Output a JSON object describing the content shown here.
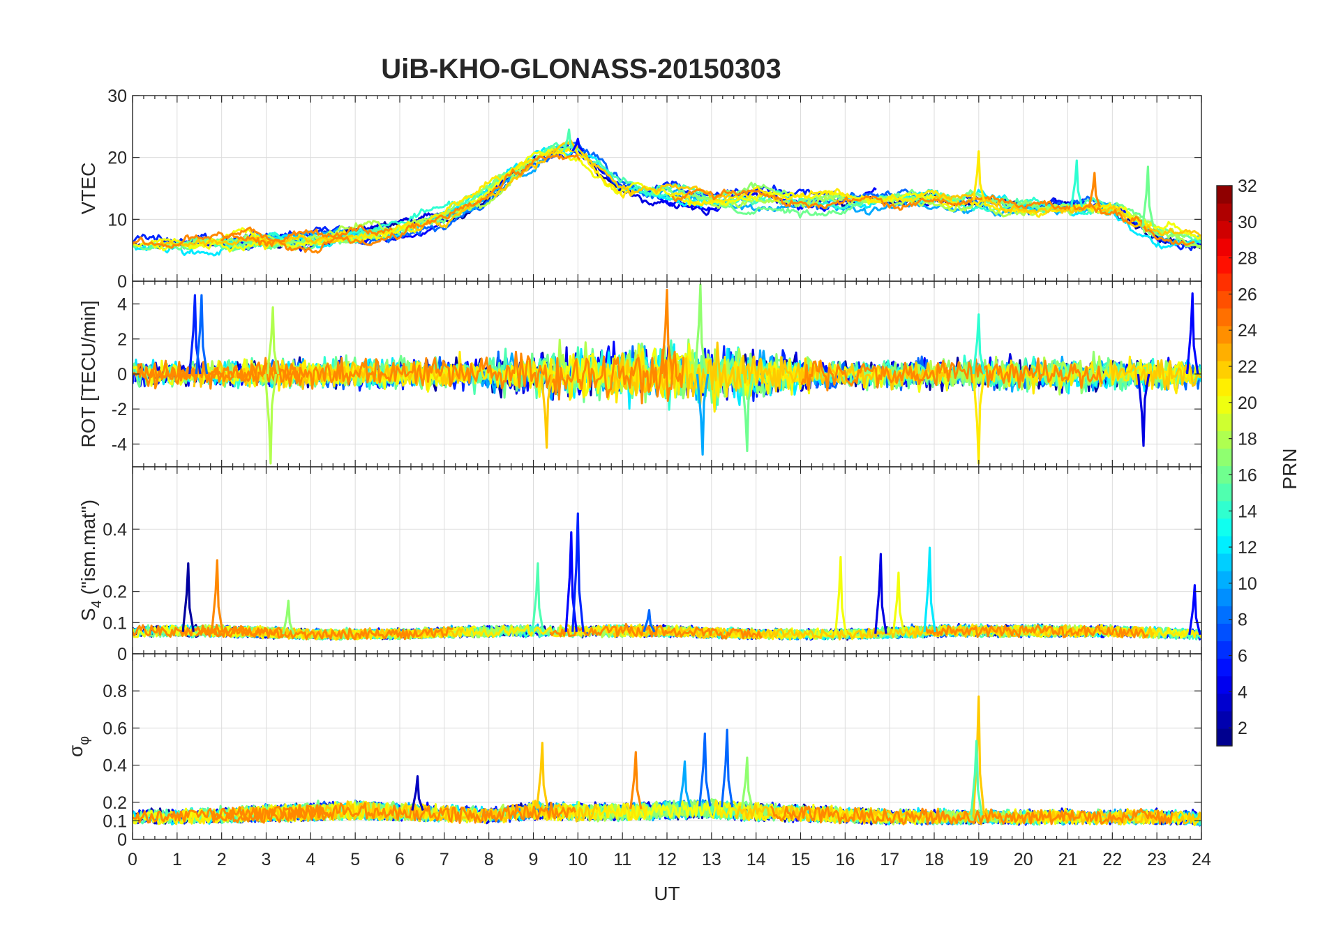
{
  "chart_data": {
    "type": "line",
    "title": "UiB-KHO-GLONASS-20150303",
    "xlabel": "UT",
    "xlim": [
      0,
      24
    ],
    "xticks": [
      "0",
      "1",
      "2",
      "3",
      "4",
      "5",
      "6",
      "7",
      "8",
      "9",
      "10",
      "11",
      "12",
      "13",
      "14",
      "15",
      "16",
      "17",
      "18",
      "19",
      "20",
      "21",
      "22",
      "23",
      "24"
    ],
    "grid": true,
    "panels": [
      {
        "name": "vtec",
        "ylabel": "VTEC",
        "ylim": [
          0,
          30
        ],
        "yticks": [
          0,
          10,
          20,
          30
        ],
        "ytick_labels": [
          "0",
          "10",
          "20",
          "30"
        ],
        "envelope": {
          "x": [
            0,
            1,
            2,
            3,
            4,
            5,
            6,
            7,
            8,
            8.5,
            9,
            9.5,
            10,
            10.5,
            11,
            12,
            13,
            14,
            15,
            16,
            17,
            18,
            19,
            20,
            21,
            22,
            23,
            24
          ],
          "y": [
            6,
            6,
            6.5,
            6.5,
            7,
            7.5,
            8,
            10,
            14,
            17,
            19,
            21,
            21,
            18,
            15,
            14,
            13,
            13.5,
            13,
            13,
            13,
            13,
            13,
            12,
            12,
            12,
            8,
            6
          ]
        },
        "peaks": [
          {
            "x": 9.8,
            "y": 24.5,
            "prn": 15
          },
          {
            "x": 10.0,
            "y": 23,
            "prn": 5
          },
          {
            "x": 19.0,
            "y": 21,
            "prn": 21
          },
          {
            "x": 21.2,
            "y": 19.5,
            "prn": 14
          },
          {
            "x": 22.8,
            "y": 18.5,
            "prn": 16
          },
          {
            "x": 21.6,
            "y": 17.5,
            "prn": 24
          }
        ]
      },
      {
        "name": "rot",
        "ylabel": "ROT [TECU/min]",
        "ylim": [
          -5.3,
          5.3
        ],
        "yticks": [
          -4,
          -2,
          0,
          2,
          4
        ],
        "ytick_labels": [
          "-4",
          "-2",
          "0",
          "2",
          "4"
        ],
        "envelope": {
          "x": [
            0,
            1,
            2,
            3,
            4,
            5,
            6,
            7,
            8,
            9,
            10,
            11,
            12,
            13,
            14,
            15,
            16,
            17,
            18,
            19,
            20,
            21,
            22,
            23,
            24
          ],
          "y": [
            0.8,
            0.8,
            0.8,
            0.9,
            0.9,
            0.9,
            1.0,
            1.0,
            1.3,
            1.6,
            1.8,
            1.8,
            1.9,
            2.1,
            1.6,
            1.2,
            1.0,
            1.0,
            1.0,
            1.0,
            1.1,
            1.1,
            1.1,
            1.0,
            0.9
          ]
        },
        "peaks": [
          {
            "x": 1.4,
            "y": 4.5,
            "prn": 6
          },
          {
            "x": 1.55,
            "y": 4.5,
            "prn": 8
          },
          {
            "x": 3.15,
            "y": 3.8,
            "prn": 18
          },
          {
            "x": 3.1,
            "y": -5.1,
            "prn": 18
          },
          {
            "x": 9.3,
            "y": -4.2,
            "prn": 22
          },
          {
            "x": 12.0,
            "y": 4.8,
            "prn": 24
          },
          {
            "x": 12.75,
            "y": 5.1,
            "prn": 17
          },
          {
            "x": 12.8,
            "y": -4.6,
            "prn": 10
          },
          {
            "x": 13.8,
            "y": -4.4,
            "prn": 16
          },
          {
            "x": 19.0,
            "y": -5.1,
            "prn": 21
          },
          {
            "x": 19.0,
            "y": 3.4,
            "prn": 14
          },
          {
            "x": 22.7,
            "y": -4.1,
            "prn": 4
          },
          {
            "x": 23.8,
            "y": 4.6,
            "prn": 5
          }
        ]
      },
      {
        "name": "s4",
        "ylabel_main": "S",
        "ylabel_sub": "4",
        "ylabel_rest": "  (\"ism.mat\")",
        "ylim": [
          0,
          0.6
        ],
        "yticks": [
          0,
          0.1,
          0.2,
          0.4
        ],
        "ytick_labels": [
          "0",
          "0.1",
          "0.2",
          "0.4"
        ],
        "envelope": {
          "x": [
            0,
            2,
            4,
            6,
            8,
            10,
            12,
            14,
            16,
            18,
            20,
            22,
            24
          ],
          "y": [
            0.07,
            0.07,
            0.06,
            0.06,
            0.07,
            0.07,
            0.07,
            0.06,
            0.06,
            0.07,
            0.07,
            0.07,
            0.06
          ]
        },
        "peaks": [
          {
            "x": 1.25,
            "y": 0.29,
            "prn": 2
          },
          {
            "x": 1.9,
            "y": 0.3,
            "prn": 24
          },
          {
            "x": 3.5,
            "y": 0.17,
            "prn": 17
          },
          {
            "x": 9.1,
            "y": 0.29,
            "prn": 15
          },
          {
            "x": 9.85,
            "y": 0.39,
            "prn": 5
          },
          {
            "x": 10.0,
            "y": 0.45,
            "prn": 6
          },
          {
            "x": 11.6,
            "y": 0.14,
            "prn": 8
          },
          {
            "x": 15.9,
            "y": 0.31,
            "prn": 20
          },
          {
            "x": 16.8,
            "y": 0.32,
            "prn": 4
          },
          {
            "x": 17.2,
            "y": 0.26,
            "prn": 20
          },
          {
            "x": 17.9,
            "y": 0.34,
            "prn": 12
          },
          {
            "x": 23.85,
            "y": 0.22,
            "prn": 5
          }
        ]
      },
      {
        "name": "sigma_phi",
        "ylabel_main": "σ",
        "ylabel_sub": "φ",
        "ylim": [
          0,
          1.0
        ],
        "yticks": [
          0,
          0.1,
          0.2,
          0.4,
          0.6,
          0.8
        ],
        "ytick_labels": [
          "0",
          "0.1",
          "0.2",
          "0.4",
          "0.6",
          "0.8"
        ],
        "envelope": {
          "x": [
            0,
            1,
            2,
            3,
            4,
            5,
            6,
            7,
            8,
            9,
            10,
            11,
            12,
            13,
            14,
            15,
            16,
            17,
            18,
            19,
            20,
            21,
            22,
            23,
            24
          ],
          "y": [
            0.13,
            0.13,
            0.14,
            0.15,
            0.16,
            0.17,
            0.16,
            0.15,
            0.14,
            0.17,
            0.16,
            0.16,
            0.17,
            0.18,
            0.16,
            0.15,
            0.14,
            0.13,
            0.13,
            0.13,
            0.13,
            0.13,
            0.13,
            0.13,
            0.12
          ]
        },
        "peaks": [
          {
            "x": 9.2,
            "y": 0.52,
            "prn": 22
          },
          {
            "x": 11.3,
            "y": 0.47,
            "prn": 24
          },
          {
            "x": 12.85,
            "y": 0.57,
            "prn": 8
          },
          {
            "x": 13.35,
            "y": 0.59,
            "prn": 8
          },
          {
            "x": 12.4,
            "y": 0.42,
            "prn": 10
          },
          {
            "x": 13.8,
            "y": 0.44,
            "prn": 17
          },
          {
            "x": 19.0,
            "y": 0.77,
            "prn": 22
          },
          {
            "x": 18.95,
            "y": 0.53,
            "prn": 15
          },
          {
            "x": 6.4,
            "y": 0.34,
            "prn": 3
          }
        ]
      }
    ],
    "colorbar": {
      "label": "PRN",
      "colormap": "jet",
      "range": [
        1,
        32
      ],
      "ticks": [
        2,
        4,
        6,
        8,
        10,
        12,
        14,
        16,
        18,
        20,
        22,
        24,
        26,
        28,
        30,
        32
      ],
      "ncolors": 32
    },
    "series_prns": [
      2,
      4,
      5,
      6,
      8,
      10,
      12,
      14,
      15,
      16,
      17,
      18,
      20,
      21,
      22,
      24
    ]
  }
}
